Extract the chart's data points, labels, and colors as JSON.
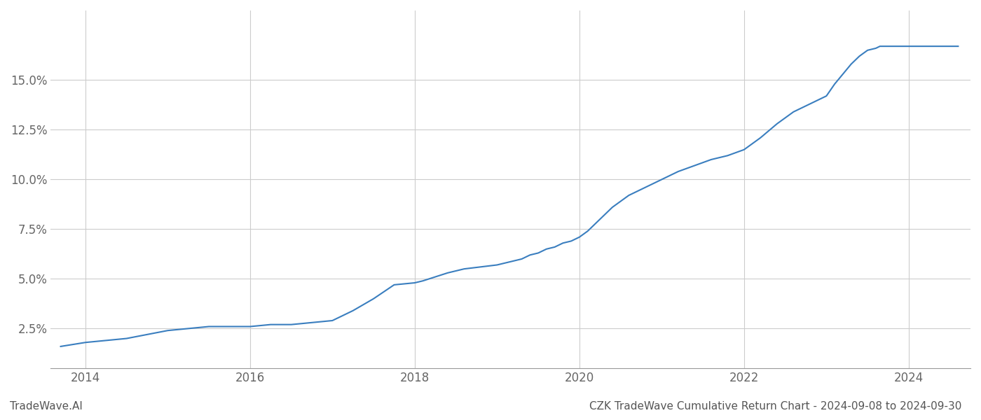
{
  "title": "CZK TradeWave Cumulative Return Chart - 2024-09-08 to 2024-09-30",
  "watermark": "TradeWave.AI",
  "line_color": "#3a7ebf",
  "background_color": "#ffffff",
  "grid_color": "#cccccc",
  "x_years": [
    2014,
    2016,
    2018,
    2020,
    2022,
    2024
  ],
  "yticks": [
    0.025,
    0.05,
    0.075,
    0.1,
    0.125,
    0.15
  ],
  "ytick_labels": [
    "2.5%",
    "5.0%",
    "7.5%",
    "10.0%",
    "12.5%",
    "15.0%"
  ],
  "data_x": [
    2013.7,
    2014.0,
    2014.25,
    2014.5,
    2014.75,
    2015.0,
    2015.25,
    2015.5,
    2015.75,
    2016.0,
    2016.25,
    2016.5,
    2016.75,
    2017.0,
    2017.25,
    2017.5,
    2017.75,
    2018.0,
    2018.1,
    2018.25,
    2018.4,
    2018.6,
    2018.8,
    2019.0,
    2019.1,
    2019.2,
    2019.3,
    2019.4,
    2019.5,
    2019.6,
    2019.7,
    2019.8,
    2019.9,
    2020.0,
    2020.1,
    2020.2,
    2020.3,
    2020.4,
    2020.5,
    2020.6,
    2020.7,
    2020.8,
    2020.9,
    2021.0,
    2021.2,
    2021.4,
    2021.6,
    2021.8,
    2022.0,
    2022.2,
    2022.4,
    2022.6,
    2022.8,
    2023.0,
    2023.1,
    2023.2,
    2023.3,
    2023.4,
    2023.5,
    2023.6,
    2023.65,
    2023.7,
    2023.8,
    2023.9,
    2024.0,
    2024.2,
    2024.4,
    2024.6
  ],
  "data_y": [
    0.016,
    0.018,
    0.019,
    0.02,
    0.022,
    0.024,
    0.025,
    0.026,
    0.026,
    0.026,
    0.027,
    0.027,
    0.028,
    0.029,
    0.034,
    0.04,
    0.047,
    0.048,
    0.049,
    0.051,
    0.053,
    0.055,
    0.056,
    0.057,
    0.058,
    0.059,
    0.06,
    0.062,
    0.063,
    0.065,
    0.066,
    0.068,
    0.069,
    0.071,
    0.074,
    0.078,
    0.082,
    0.086,
    0.089,
    0.092,
    0.094,
    0.096,
    0.098,
    0.1,
    0.104,
    0.107,
    0.11,
    0.112,
    0.115,
    0.121,
    0.128,
    0.134,
    0.138,
    0.142,
    0.148,
    0.153,
    0.158,
    0.162,
    0.165,
    0.166,
    0.167,
    0.167,
    0.167,
    0.167,
    0.167,
    0.167,
    0.167,
    0.167
  ],
  "ylim": [
    0.005,
    0.185
  ],
  "xlim": [
    2013.58,
    2024.75
  ],
  "title_fontsize": 11,
  "watermark_fontsize": 11,
  "tick_fontsize": 12,
  "line_width": 1.5
}
